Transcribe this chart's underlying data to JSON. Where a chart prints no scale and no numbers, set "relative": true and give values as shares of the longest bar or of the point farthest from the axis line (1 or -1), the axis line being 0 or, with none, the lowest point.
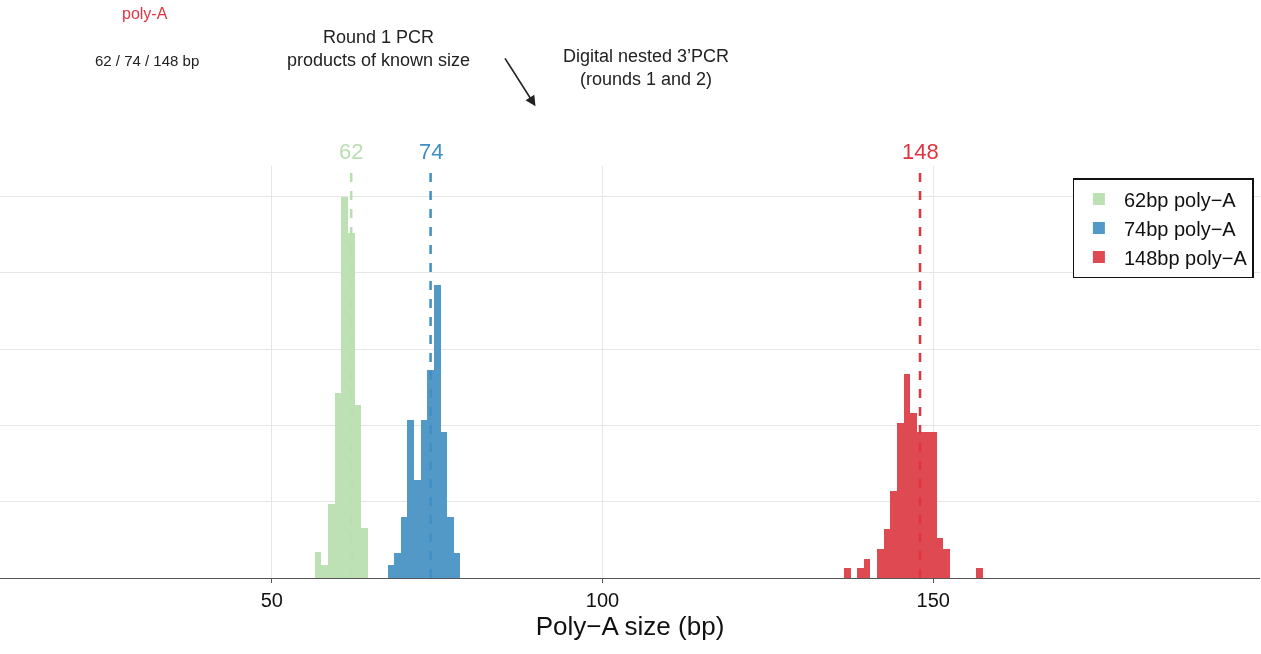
{
  "chart_data": {
    "type": "bar",
    "relative": true,
    "xlabel": "Poly−A size (bp)",
    "xlim": [
      8.9,
      199.4
    ],
    "xticks": [
      50,
      100,
      150
    ],
    "grid": true,
    "legend": "top right",
    "annotations": [
      "poly-A",
      "62 / 74 / 148 bp",
      "Round 1 PCR\nproducts of known size",
      "Digital nested 3’PCR\n(rounds 1 and 2)"
    ],
    "ref_lines": [
      {
        "axis": "x",
        "value": 62,
        "label": "62",
        "color": "#b9dfb0",
        "line_style": "dashed"
      },
      {
        "axis": "x",
        "value": 74,
        "label": "74",
        "color": "#3f8fc4",
        "line_style": "dashed"
      },
      {
        "axis": "x",
        "value": 148,
        "label": "148",
        "color": "#e0343f",
        "line_style": "dashed"
      }
    ],
    "series": [
      {
        "name": "62bp poly−A",
        "color": "#bde0b5",
        "x": [
          57,
          58,
          59,
          60,
          61,
          62,
          63,
          64
        ],
        "values": [
          0.067,
          0.033,
          0.195,
          0.484,
          1,
          0.904,
          0.453,
          0.131
        ]
      },
      {
        "name": "74bp poly−A",
        "color": "#5399c8",
        "x": [
          68,
          69,
          70,
          71,
          72,
          73,
          74,
          75,
          76,
          77,
          78
        ],
        "values": [
          0.033,
          0.065,
          0.16,
          0.415,
          0.257,
          0.415,
          0.546,
          0.768,
          0.384,
          0.16,
          0.065
        ]
      },
      {
        "name": "148bp poly−A",
        "color": "#df4a52",
        "x": [
          137,
          139,
          140,
          142,
          143,
          144,
          145,
          146,
          147,
          148,
          149,
          150,
          151,
          152,
          157
        ],
        "values": [
          0.027,
          0.027,
          0.05,
          0.077,
          0.128,
          0.229,
          0.407,
          0.534,
          0.433,
          0.383,
          0.383,
          0.383,
          0.104,
          0.077,
          0.027
        ]
      }
    ]
  }
}
